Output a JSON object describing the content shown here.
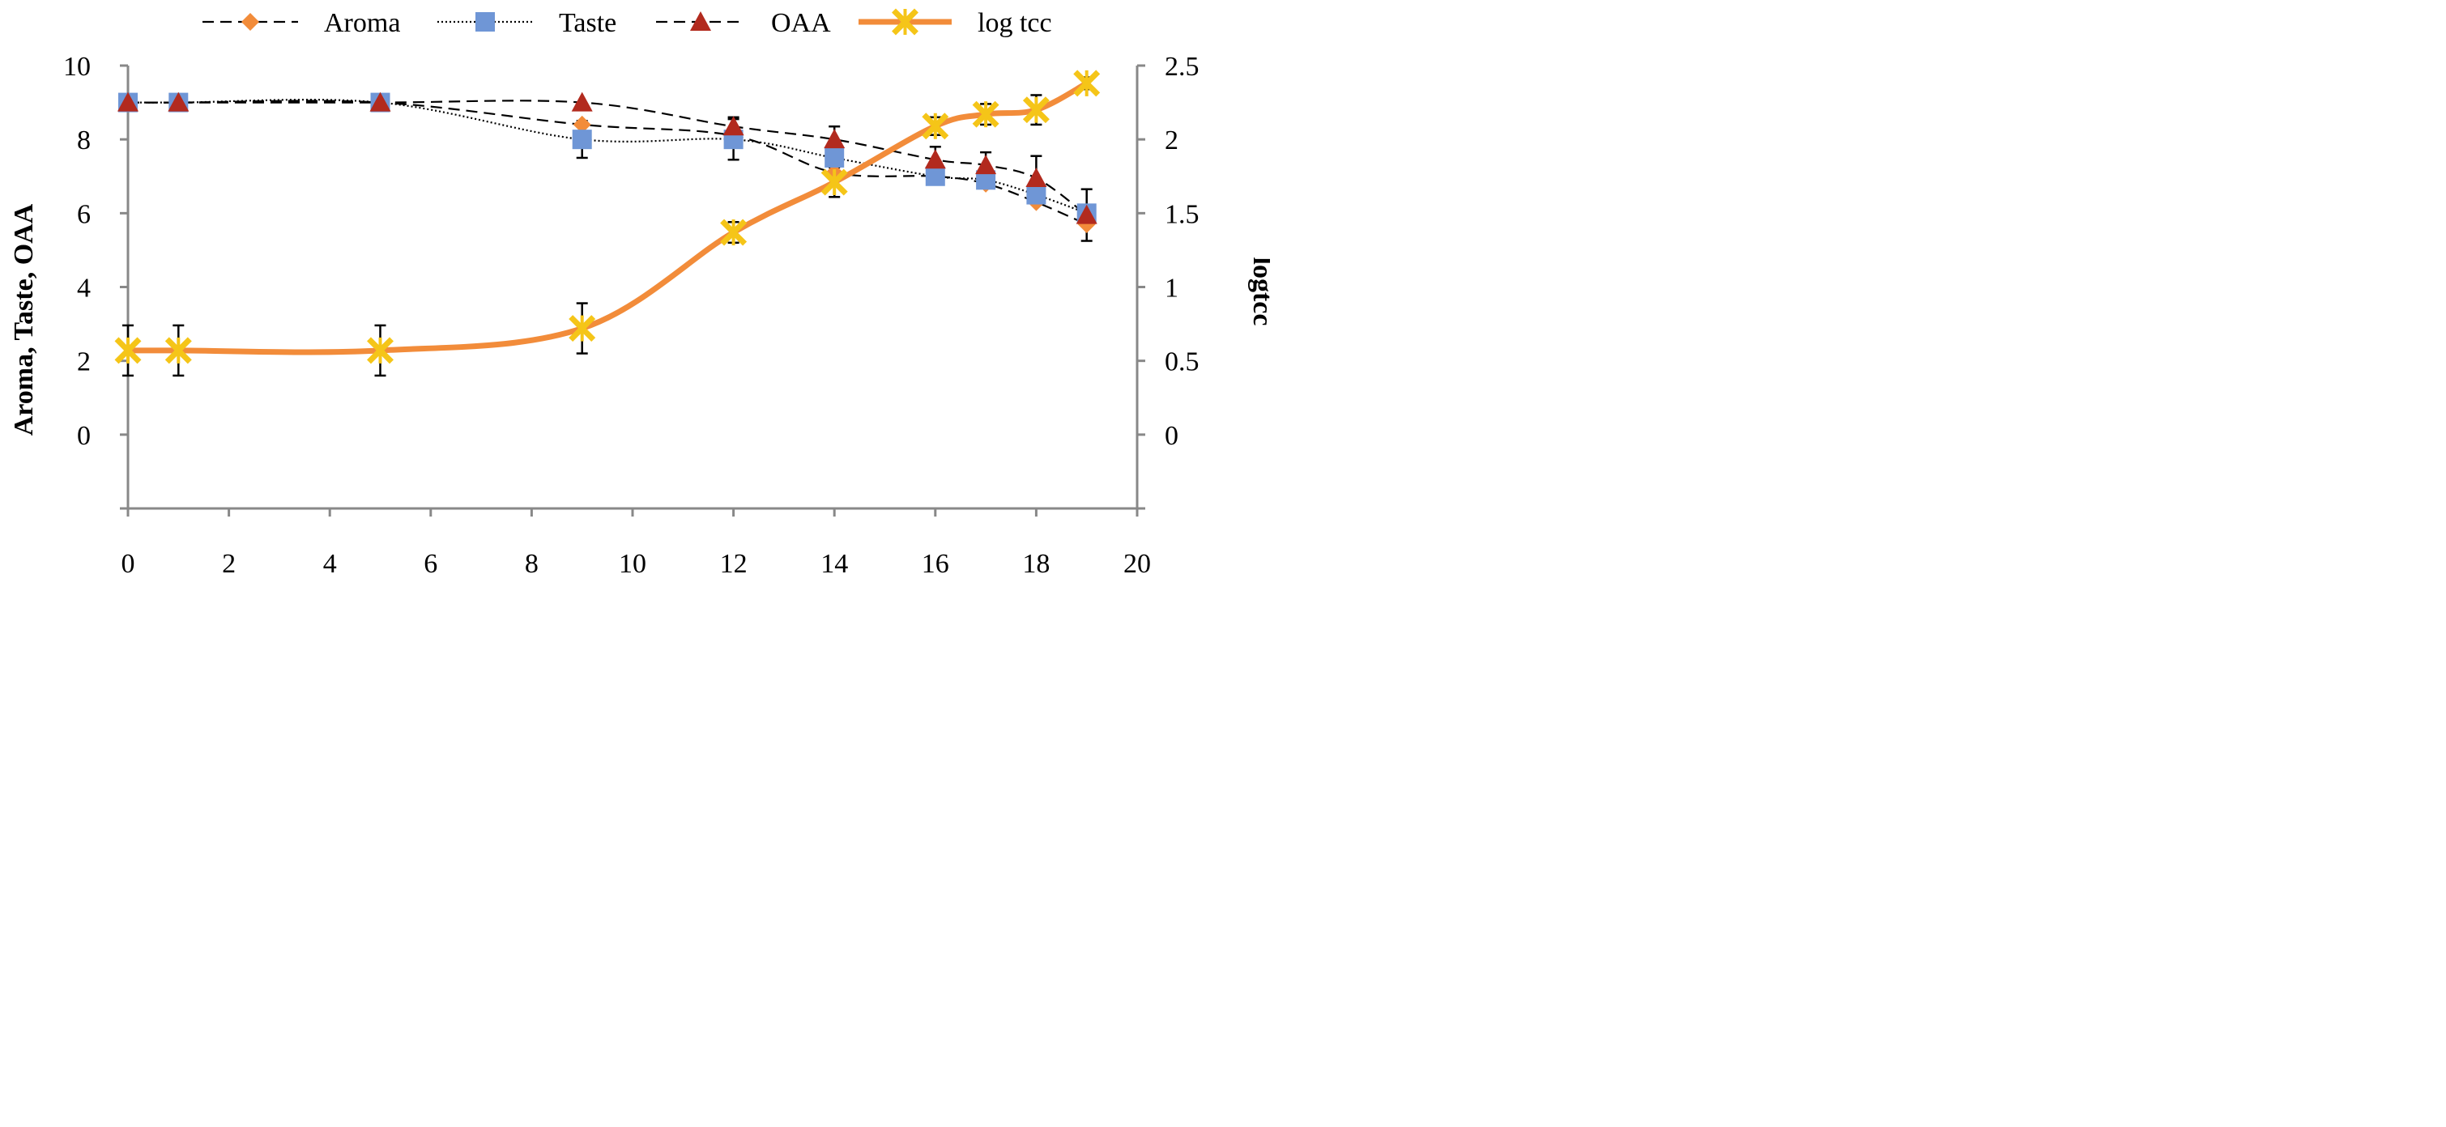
{
  "chart_data": {
    "type": "line",
    "x": [
      0,
      1,
      5,
      9,
      12,
      14,
      16,
      17,
      18,
      19
    ],
    "xlim": [
      0,
      20
    ],
    "xticks": [
      "0",
      "2",
      "4",
      "6",
      "8",
      "10",
      "12",
      "14",
      "16",
      "18",
      "20"
    ],
    "ylabel": "Aroma,  Taste,  OAA",
    "ylim": [
      -2,
      10
    ],
    "yticks": [
      "0",
      "2",
      "4",
      "6",
      "8",
      "10"
    ],
    "y2label": "logtcc",
    "y2lim": [
      -0.5,
      2.5
    ],
    "y2ticks": [
      "0",
      "0.5",
      "1",
      "1.5",
      "2",
      "2.5"
    ],
    "grid": false,
    "legend_position": "top",
    "series": [
      {
        "name": "Aroma",
        "axis": "left",
        "marker": "diamond",
        "line_style": "dashed",
        "color": "#f28c3a",
        "line_color": "#000000",
        "values": [
          9,
          9,
          9,
          8.4,
          8.1,
          7.1,
          7.0,
          6.8,
          6.3,
          5.7
        ],
        "error": [
          0,
          0,
          0,
          0,
          0,
          0,
          0,
          0,
          0,
          0
        ]
      },
      {
        "name": "Taste",
        "axis": "left",
        "marker": "square",
        "line_style": "dotted",
        "color": "#6f96d6",
        "line_color": "#000000",
        "values": [
          9,
          9,
          9,
          8.0,
          8.0,
          7.5,
          7.0,
          6.9,
          6.5,
          6.0
        ],
        "error": [
          0,
          0,
          0,
          0.5,
          0.55,
          0,
          0,
          0,
          0,
          0
        ]
      },
      {
        "name": "OAA",
        "axis": "left",
        "marker": "triangle",
        "line_style": "dashed",
        "color": "#b22a1e",
        "line_color": "#000000",
        "values": [
          9,
          9,
          9,
          9.0,
          8.35,
          8.0,
          7.45,
          7.3,
          6.95,
          5.95
        ],
        "error": [
          0,
          0,
          0,
          0,
          0.25,
          0.35,
          0.35,
          0.35,
          0.6,
          0.7
        ]
      },
      {
        "name": "log tcc",
        "axis": "right",
        "marker": "star",
        "line_style": "solid",
        "color": "#f5c518",
        "line_color": "#f28c3a",
        "values": [
          0.57,
          0.57,
          0.57,
          0.72,
          1.37,
          1.71,
          2.09,
          2.17,
          2.2,
          2.38
        ],
        "error": [
          0.17,
          0.17,
          0.17,
          0.17,
          0.07,
          0.1,
          0.06,
          0.07,
          0.1,
          0.04
        ]
      }
    ]
  }
}
